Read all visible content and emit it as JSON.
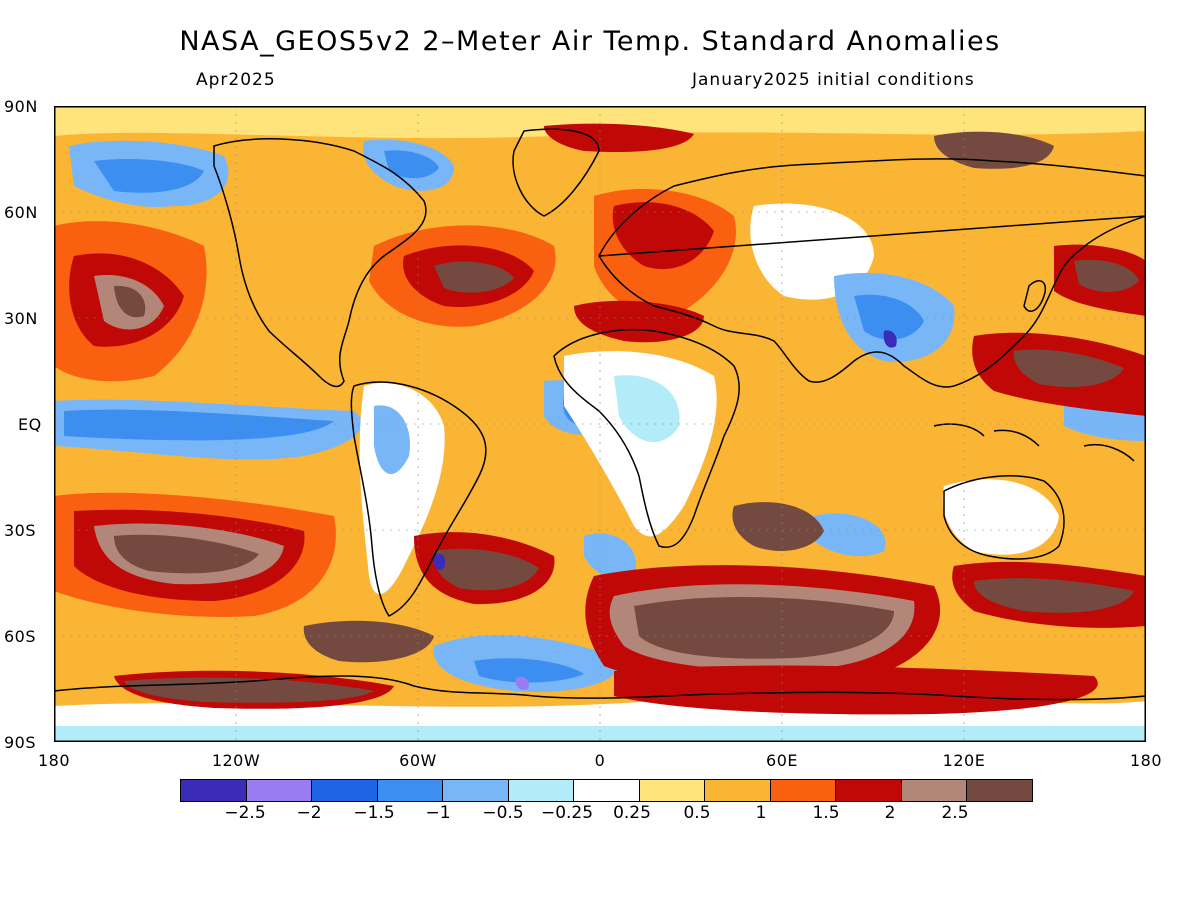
{
  "header": {
    "title": "NASA_GEOS5v2 2–Meter Air Temp. Standard Anomalies",
    "left_subtitle": "Apr2025",
    "right_subtitle": "January2025 initial conditions"
  },
  "axes": {
    "y_labels": [
      "90N",
      "60N",
      "30N",
      "EQ",
      "30S",
      "60S",
      "90S"
    ],
    "x_labels": [
      "180",
      "120W",
      "60W",
      "0",
      "60E",
      "120E",
      "180"
    ]
  },
  "colorbar": {
    "colors": [
      "#3a2bb8",
      "#9a7cf2",
      "#1e64e4",
      "#3c8ff0",
      "#78b6f8",
      "#b2ecf8",
      "#ffffff",
      "#ffe47c",
      "#fbb535",
      "#f96010",
      "#c00806",
      "#b28678",
      "#744a40"
    ],
    "labels": [
      "−2.5",
      "−2",
      "−1.5",
      "−1",
      "−0.5",
      "−0.25",
      "0.25",
      "0.5",
      "1",
      "1.5",
      "2",
      "2.5"
    ]
  },
  "map_colors": {
    "ocean_base": "#fbb535",
    "coast": "#000000"
  }
}
